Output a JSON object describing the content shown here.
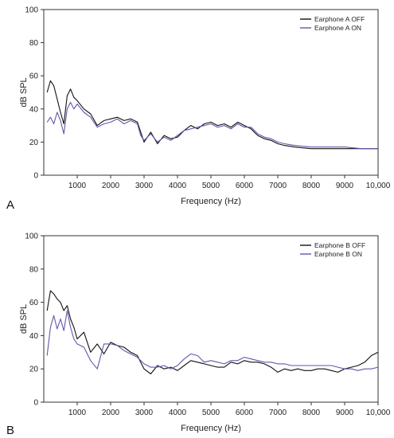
{
  "chart_data": [
    {
      "type": "line",
      "panel_label": "A",
      "xlabel": "Frequency (Hz)",
      "ylabel": "dB SPL",
      "xlim": [
        0,
        10000
      ],
      "ylim": [
        0,
        100
      ],
      "x_ticks": [
        1000,
        2000,
        3000,
        4000,
        5000,
        6000,
        7000,
        8000,
        9000,
        10000
      ],
      "x_tick_labels": [
        "1000",
        "2000",
        "3000",
        "4000",
        "5000",
        "6000",
        "7000",
        "8000",
        "9000",
        "10,000"
      ],
      "y_ticks": [
        0,
        20,
        40,
        60,
        80,
        100
      ],
      "y_tick_labels": [
        "0",
        "20",
        "40",
        "60",
        "80",
        "100"
      ],
      "legend_position": "top-right",
      "series": [
        {
          "name": "Earphone A OFF",
          "color": "#111111",
          "x": [
            100,
            200,
            300,
            400,
            500,
            600,
            700,
            800,
            900,
            1000,
            1200,
            1400,
            1600,
            1800,
            2000,
            2200,
            2400,
            2600,
            2800,
            2900,
            3000,
            3200,
            3400,
            3600,
            3800,
            4000,
            4200,
            4400,
            4600,
            4800,
            5000,
            5200,
            5400,
            5600,
            5800,
            6000,
            6200,
            6400,
            6600,
            6800,
            7000,
            7200,
            7500,
            8000,
            8500,
            9000,
            9500,
            10000
          ],
          "values": [
            50,
            57,
            54,
            46,
            38,
            31,
            48,
            52,
            47,
            45,
            40,
            37,
            30,
            33,
            34,
            35,
            33,
            34,
            32,
            26,
            20,
            26,
            19,
            24,
            22,
            23,
            27,
            30,
            28,
            31,
            32,
            30,
            31,
            29,
            32,
            30,
            28,
            24,
            22,
            21,
            19,
            18,
            17,
            16,
            16,
            16,
            16,
            16
          ]
        },
        {
          "name": "Earphone A ON",
          "color": "#6655aa",
          "x": [
            100,
            200,
            300,
            400,
            500,
            600,
            700,
            800,
            900,
            1000,
            1200,
            1400,
            1600,
            1800,
            2000,
            2200,
            2400,
            2600,
            2800,
            2900,
            3000,
            3200,
            3400,
            3600,
            3800,
            4000,
            4200,
            4400,
            4600,
            4800,
            5000,
            5200,
            5400,
            5600,
            5800,
            6000,
            6200,
            6400,
            6600,
            6800,
            7000,
            7200,
            7500,
            8000,
            8500,
            9000,
            9500,
            10000
          ],
          "values": [
            32,
            35,
            31,
            38,
            33,
            25,
            40,
            44,
            40,
            43,
            38,
            35,
            29,
            31,
            32,
            34,
            31,
            33,
            31,
            24,
            21,
            25,
            20,
            23,
            21,
            24,
            27,
            28,
            29,
            30,
            31,
            29,
            30,
            28,
            31,
            29,
            29,
            25,
            23,
            22,
            20,
            19,
            18,
            17,
            17,
            17,
            16,
            16
          ]
        }
      ]
    },
    {
      "type": "line",
      "panel_label": "B",
      "xlabel": "Frequency (Hz)",
      "ylabel": "dB SPL",
      "xlim": [
        0,
        10000
      ],
      "ylim": [
        0,
        100
      ],
      "x_ticks": [
        1000,
        2000,
        3000,
        4000,
        5000,
        6000,
        7000,
        8000,
        9000,
        10000
      ],
      "x_tick_labels": [
        "1000",
        "2000",
        "3000",
        "4000",
        "5000",
        "6000",
        "7000",
        "8000",
        "9000",
        "10,000"
      ],
      "y_ticks": [
        0,
        20,
        40,
        60,
        80,
        100
      ],
      "y_tick_labels": [
        "0",
        "20",
        "40",
        "60",
        "80",
        "100"
      ],
      "legend_position": "top-right",
      "series": [
        {
          "name": "Earphone B OFF",
          "color": "#111111",
          "x": [
            100,
            200,
            300,
            400,
            500,
            600,
            700,
            800,
            900,
            1000,
            1200,
            1400,
            1600,
            1800,
            2000,
            2200,
            2400,
            2600,
            2800,
            3000,
            3200,
            3400,
            3600,
            3800,
            4000,
            4200,
            4400,
            4600,
            4800,
            5000,
            5200,
            5400,
            5600,
            5800,
            6000,
            6200,
            6400,
            6600,
            6800,
            7000,
            7200,
            7400,
            7600,
            7800,
            8000,
            8200,
            8400,
            8600,
            8800,
            9000,
            9200,
            9400,
            9600,
            9800,
            10000
          ],
          "values": [
            55,
            67,
            65,
            62,
            60,
            55,
            58,
            50,
            45,
            38,
            42,
            30,
            35,
            29,
            36,
            34,
            33,
            30,
            28,
            20,
            17,
            22,
            20,
            21,
            19,
            22,
            25,
            24,
            23,
            22,
            21,
            21,
            24,
            23,
            25,
            24,
            24,
            23,
            21,
            18,
            20,
            19,
            20,
            19,
            19,
            20,
            20,
            19,
            18,
            20,
            21,
            22,
            24,
            28,
            30
          ]
        },
        {
          "name": "Earphone B ON",
          "color": "#6655aa",
          "x": [
            100,
            200,
            300,
            400,
            500,
            600,
            700,
            800,
            900,
            1000,
            1200,
            1400,
            1600,
            1800,
            2000,
            2200,
            2400,
            2600,
            2800,
            3000,
            3200,
            3400,
            3600,
            3800,
            4000,
            4200,
            4400,
            4600,
            4800,
            5000,
            5200,
            5400,
            5600,
            5800,
            6000,
            6200,
            6400,
            6600,
            6800,
            7000,
            7200,
            7400,
            7600,
            7800,
            8000,
            8200,
            8400,
            8600,
            8800,
            9000,
            9200,
            9400,
            9600,
            9800,
            10000
          ],
          "values": [
            28,
            45,
            52,
            44,
            50,
            43,
            55,
            45,
            38,
            35,
            33,
            25,
            20,
            35,
            35,
            34,
            31,
            29,
            27,
            23,
            21,
            21,
            22,
            20,
            22,
            26,
            29,
            28,
            24,
            25,
            24,
            23,
            25,
            25,
            27,
            26,
            25,
            24,
            24,
            23,
            23,
            22,
            22,
            22,
            22,
            22,
            22,
            22,
            21,
            20,
            20,
            19,
            20,
            20,
            21
          ]
        }
      ]
    }
  ]
}
